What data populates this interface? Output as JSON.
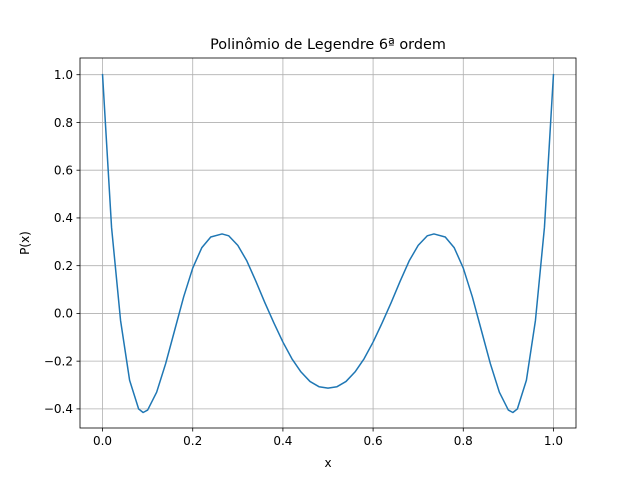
{
  "chart_data": {
    "type": "line",
    "title": "Polinômio de Legendre 6ª ordem",
    "xlabel": "x",
    "ylabel": "P(x)",
    "xlim": [
      -0.05,
      1.05
    ],
    "ylim": [
      -0.48,
      1.07
    ],
    "grid": true,
    "xticks": [
      0.0,
      0.2,
      0.4,
      0.6,
      0.8,
      1.0
    ],
    "xtick_labels": [
      "0.0",
      "0.2",
      "0.4",
      "0.6",
      "0.8",
      "1.0"
    ],
    "yticks": [
      -0.4,
      -0.2,
      0.0,
      0.2,
      0.4,
      0.6,
      0.8,
      1.0
    ],
    "ytick_labels": [
      "−0.4",
      "−0.2",
      "0.0",
      "0.2",
      "0.4",
      "0.6",
      "0.8",
      "1.0"
    ],
    "series": [
      {
        "color": "#1f77b4",
        "x": [
          0.0,
          0.02,
          0.04,
          0.06,
          0.08,
          0.09,
          0.1,
          0.12,
          0.14,
          0.16,
          0.18,
          0.2,
          0.22,
          0.24,
          0.265,
          0.28,
          0.3,
          0.32,
          0.34,
          0.36,
          0.38,
          0.4,
          0.42,
          0.44,
          0.46,
          0.48,
          0.5,
          0.52,
          0.54,
          0.56,
          0.58,
          0.6,
          0.62,
          0.64,
          0.66,
          0.68,
          0.7,
          0.72,
          0.735,
          0.76,
          0.78,
          0.8,
          0.82,
          0.84,
          0.86,
          0.88,
          0.9,
          0.91,
          0.92,
          0.94,
          0.96,
          0.98,
          1.0
        ],
        "y": [
          1.0,
          0.36,
          -0.03,
          -0.28,
          -0.4,
          -0.415,
          -0.405,
          -0.33,
          -0.21,
          -0.07,
          0.07,
          0.19,
          0.275,
          0.32,
          0.333,
          0.325,
          0.285,
          0.22,
          0.135,
          0.045,
          -0.04,
          -0.12,
          -0.19,
          -0.245,
          -0.285,
          -0.307,
          -0.313,
          -0.307,
          -0.285,
          -0.245,
          -0.19,
          -0.12,
          -0.04,
          0.045,
          0.135,
          0.22,
          0.285,
          0.325,
          0.333,
          0.32,
          0.275,
          0.19,
          0.07,
          -0.07,
          -0.21,
          -0.33,
          -0.405,
          -0.415,
          -0.4,
          -0.28,
          -0.03,
          0.36,
          1.0
        ]
      }
    ]
  }
}
